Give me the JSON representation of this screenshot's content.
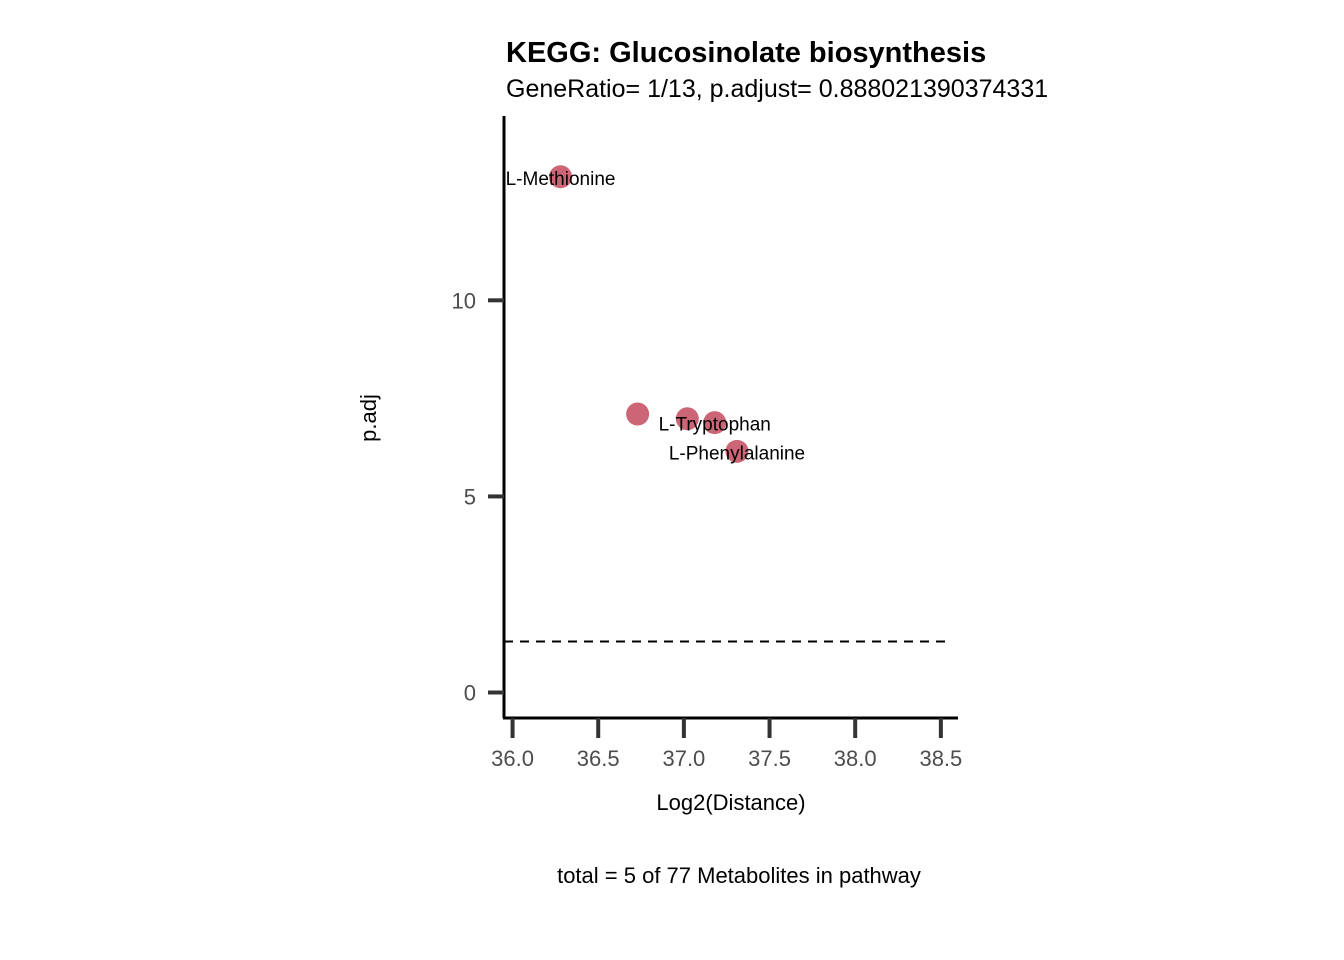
{
  "chart_data": {
    "type": "scatter",
    "title": "KEGG: Glucosinolate biosynthesis",
    "subtitle": "GeneRatio= 1/13, p.adjust= 0.888021390374331",
    "xlabel": "Log2(Distance)",
    "ylabel": "p.adj",
    "caption": "total = 5 of 77 Metabolites in pathway",
    "xlim": [
      35.95,
      38.6
    ],
    "ylim": [
      -0.65,
      14.7
    ],
    "xticks": [
      36.0,
      36.5,
      37.0,
      37.5,
      38.0,
      38.5
    ],
    "xtick_labels": [
      "36.0",
      "36.5",
      "37.0",
      "37.5",
      "38.0",
      "38.5"
    ],
    "yticks": [
      0,
      5,
      10
    ],
    "ytick_labels": [
      "0",
      "5",
      "10"
    ],
    "threshold_line": 1.3,
    "point_color": "#cc6677",
    "points": [
      {
        "x": 36.28,
        "y": 13.15,
        "label": "L-Methionine"
      },
      {
        "x": 36.73,
        "y": 7.1,
        "label": ""
      },
      {
        "x": 37.02,
        "y": 6.98,
        "label": ""
      },
      {
        "x": 37.18,
        "y": 6.88,
        "label": "L-Tryptophan"
      },
      {
        "x": 37.31,
        "y": 6.15,
        "label": "L-Phenylalanine"
      }
    ],
    "grid": false,
    "legend": "none"
  }
}
